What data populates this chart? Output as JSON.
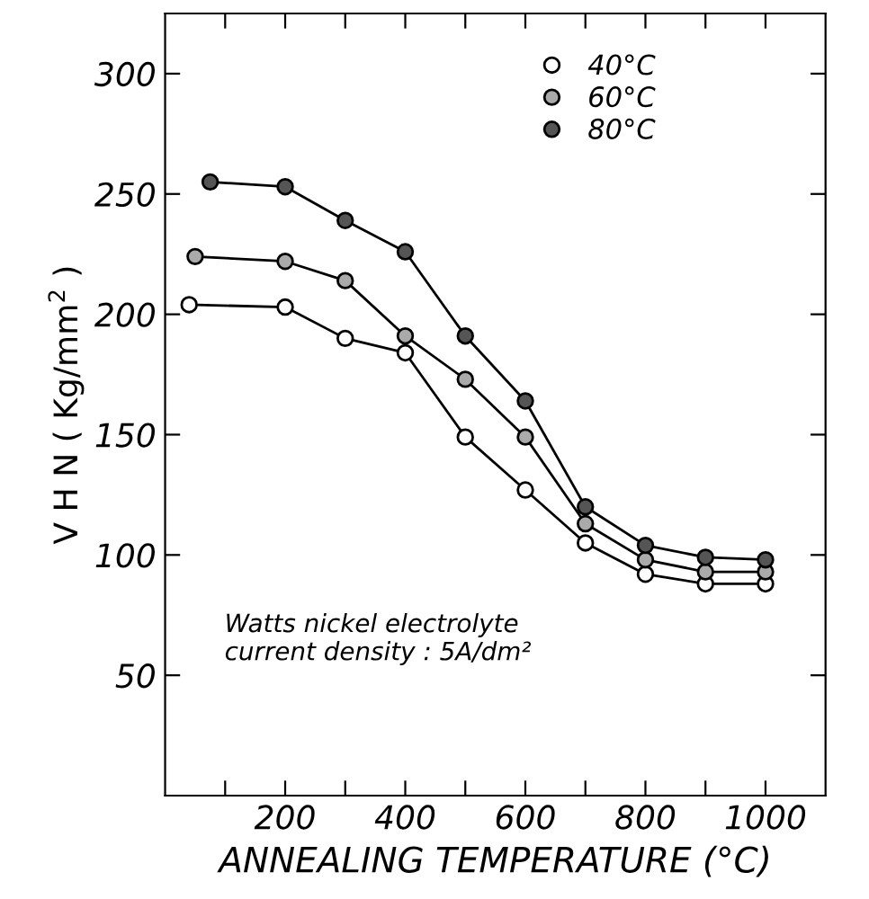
{
  "chart_data": {
    "type": "line",
    "xlabel": "ANNEALING TEMPERATURE (°C)",
    "ylabel": "V H N ( Kg/mm$^{2}$ )",
    "xlim": [
      0,
      1100
    ],
    "xticks": [
      {
        "value": 100,
        "label": null
      },
      200,
      {
        "value": 300,
        "label": null
      },
      400,
      {
        "value": 500,
        "label": null
      },
      600,
      {
        "value": 700,
        "label": null
      },
      800,
      {
        "value": 900,
        "label": null
      },
      1000
    ],
    "ylim": [
      0,
      325
    ],
    "yticks": [
      50,
      100,
      150,
      200,
      250,
      300
    ],
    "marker": "circle",
    "grid": false,
    "legend": "top right",
    "annotations": [
      "Watts nickel electrolyte\ncurrent density : 5A/dm²"
    ],
    "series": [
      {
        "name": "40°C",
        "color": "#000000",
        "x": [
          40,
          200,
          300,
          400,
          500,
          600,
          700,
          800,
          900,
          1000
        ],
        "values": [
          204,
          203,
          190,
          184,
          149,
          127,
          105,
          92,
          88,
          88
        ]
      },
      {
        "name": "60°C",
        "color": "#000000",
        "x": [
          50,
          200,
          300,
          400,
          500,
          600,
          700,
          800,
          900,
          1000
        ],
        "values": [
          224,
          222,
          214,
          191,
          173,
          149,
          113,
          98,
          93,
          93
        ]
      },
      {
        "name": "80°C",
        "color": "#000000",
        "x": [
          75,
          200,
          300,
          400,
          500,
          600,
          700,
          800,
          900,
          1000
        ],
        "values": [
          255,
          253,
          239,
          226,
          191,
          164,
          120,
          104,
          99,
          98
        ]
      }
    ]
  }
}
